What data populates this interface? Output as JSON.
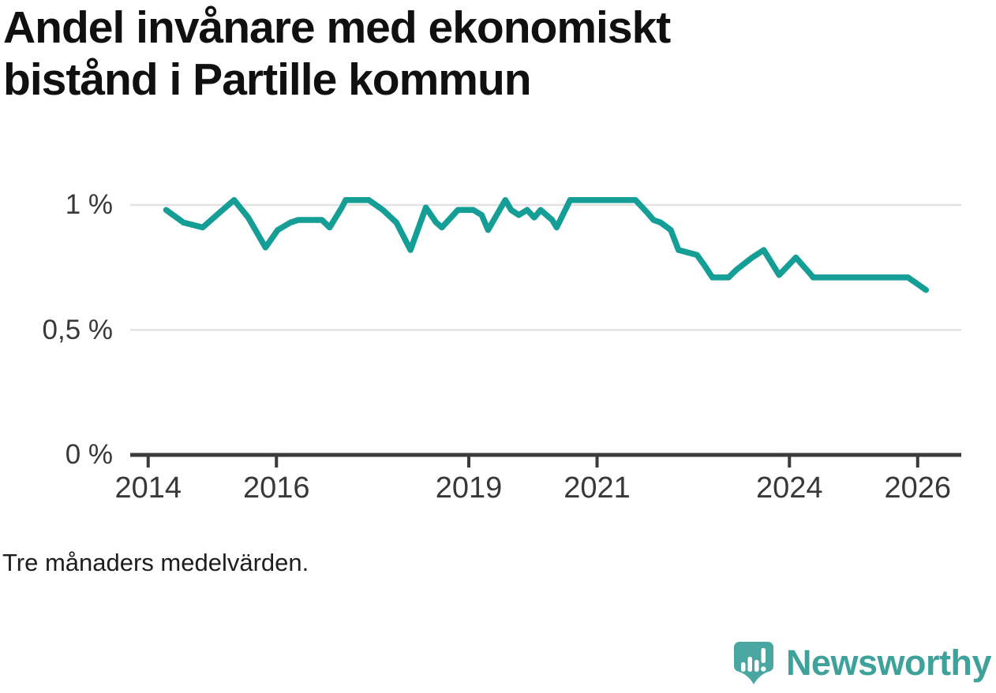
{
  "title": {
    "line1": "Andel invånare med ekonomiskt",
    "line2": "bistånd i Partille kommun"
  },
  "footnote": "Tre månaders medelvärden.",
  "branding": {
    "name": "Newsworthy",
    "logo_icon": "newsworthy-bubble-barchart-icon",
    "icon_color": "#4AA6A0",
    "text_color": "#3EA29B"
  },
  "colors": {
    "line": "#149E96",
    "grid": "#E2E2E2",
    "axis": "#3B3B3B",
    "tick_text": "#383838",
    "title_text": "#101010"
  },
  "chart_data": {
    "type": "line",
    "title": "Andel invånare med ekonomiskt bistånd i Partille kommun",
    "xlabel": "",
    "ylabel": "",
    "x_unit": "year",
    "y_unit": "%",
    "xlim": [
      2013.72,
      2026.68
    ],
    "ylim": [
      0,
      1.15
    ],
    "grid": "horizontal",
    "legend": "none",
    "y_ticks": [
      {
        "value": 1,
        "label": "1 %"
      },
      {
        "value": 0.5,
        "label": "0,5 %"
      },
      {
        "value": 0,
        "label": "0 %"
      }
    ],
    "x_ticks": [
      {
        "value": 2014,
        "label": "2014"
      },
      {
        "value": 2016,
        "label": "2016"
      },
      {
        "value": 2019,
        "label": "2019"
      },
      {
        "value": 2021,
        "label": "2021"
      },
      {
        "value": 2024,
        "label": "2024"
      },
      {
        "value": 2026,
        "label": "2026"
      }
    ],
    "series": [
      {
        "name": "Andel invånare med ekonomiskt bistånd i Partille kommun",
        "points": [
          [
            2014.28,
            0.98
          ],
          [
            2014.55,
            0.93
          ],
          [
            2014.85,
            0.91
          ],
          [
            2015.07,
            0.96
          ],
          [
            2015.34,
            1.02
          ],
          [
            2015.56,
            0.95
          ],
          [
            2015.83,
            0.83
          ],
          [
            2016.02,
            0.9
          ],
          [
            2016.22,
            0.93
          ],
          [
            2016.34,
            0.94
          ],
          [
            2016.59,
            0.94
          ],
          [
            2016.71,
            0.94
          ],
          [
            2016.83,
            0.91
          ],
          [
            2017.02,
            0.99
          ],
          [
            2017.08,
            1.02
          ],
          [
            2017.44,
            1.02
          ],
          [
            2017.66,
            0.98
          ],
          [
            2017.87,
            0.93
          ],
          [
            2018.09,
            0.82
          ],
          [
            2018.33,
            0.99
          ],
          [
            2018.49,
            0.93
          ],
          [
            2018.58,
            0.91
          ],
          [
            2018.83,
            0.98
          ],
          [
            2019.07,
            0.98
          ],
          [
            2019.2,
            0.96
          ],
          [
            2019.3,
            0.9
          ],
          [
            2019.57,
            1.02
          ],
          [
            2019.66,
            0.98
          ],
          [
            2019.78,
            0.96
          ],
          [
            2019.91,
            0.98
          ],
          [
            2020.02,
            0.95
          ],
          [
            2020.12,
            0.98
          ],
          [
            2020.3,
            0.94
          ],
          [
            2020.37,
            0.91
          ],
          [
            2020.58,
            1.02
          ],
          [
            2021.6,
            1.02
          ],
          [
            2021.78,
            0.97
          ],
          [
            2021.88,
            0.94
          ],
          [
            2021.99,
            0.93
          ],
          [
            2022.15,
            0.9
          ],
          [
            2022.27,
            0.82
          ],
          [
            2022.56,
            0.8
          ],
          [
            2022.67,
            0.76
          ],
          [
            2022.8,
            0.71
          ],
          [
            2023.05,
            0.71
          ],
          [
            2023.17,
            0.74
          ],
          [
            2023.42,
            0.79
          ],
          [
            2023.6,
            0.82
          ],
          [
            2023.84,
            0.72
          ],
          [
            2024.1,
            0.79
          ],
          [
            2024.34,
            0.72
          ],
          [
            2024.37,
            0.71
          ],
          [
            2025.85,
            0.71
          ],
          [
            2026.13,
            0.66
          ]
        ]
      }
    ]
  }
}
